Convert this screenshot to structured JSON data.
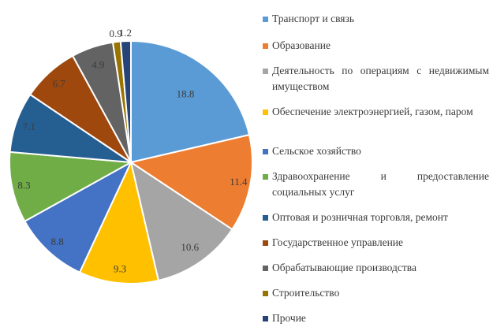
{
  "chart_data": {
    "type": "pie",
    "title": "",
    "values": [
      18.8,
      11.4,
      10.6,
      9.3,
      8.8,
      8.3,
      7.1,
      6.7,
      4.9,
      0.9,
      1.2
    ],
    "data_labels": [
      "18.8",
      "11.4",
      "10.6",
      "9.3",
      "8.8",
      "8.3",
      "7.1",
      "6.7",
      "4.9",
      "0.9",
      "1.2"
    ],
    "categories": [
      "Транспорт и связь",
      "Образование",
      "Деятельность по операциям с недвижимым имуществом",
      "Обеспечение электроэнергией, газом, паром",
      "Сельское хозяйство",
      "Здравоохранение и предоставление социальных услуг",
      "Оптовая и розничная торговля, ремонт",
      "Государственное управление",
      "Обрабатывающие производства",
      "Строительство",
      "Прочие"
    ],
    "colors": [
      "#5B9BD5",
      "#ED7D31",
      "#A5A5A5",
      "#FFC000",
      "#4472C4",
      "#70AD47",
      "#255E91",
      "#9E480E",
      "#636363",
      "#997300",
      "#264478"
    ],
    "legend_position": "right"
  }
}
